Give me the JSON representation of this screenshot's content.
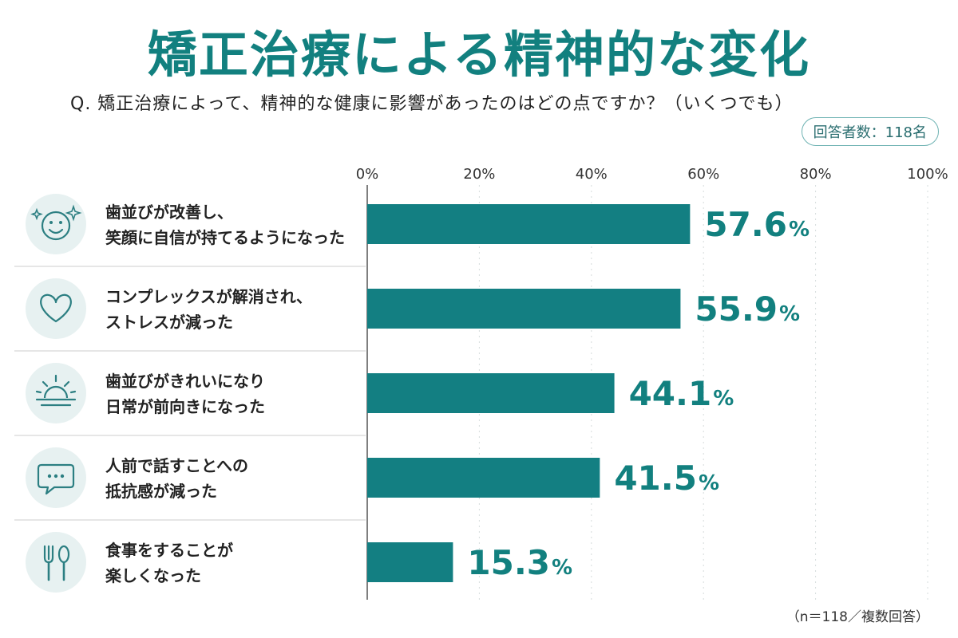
{
  "title": "矯正治療による精神的な変化",
  "question": "Q. 矯正治療によって、精神的な健康に影響があったのはどの点ですか？（いくつでも）",
  "respondents_badge": "回答者数：118名",
  "footnote": "（n＝118／複数回答）",
  "colors": {
    "bar": "#137f82",
    "accent": "#12807f",
    "icon_bg": "#e7f1f1",
    "icon_stroke": "#2c7f82"
  },
  "chart_data": {
    "type": "bar",
    "orientation": "horizontal",
    "title": "矯正治療による精神的な変化",
    "categories": [
      [
        "歯並びが改善し、",
        "笑顔に自信が持てるようになった"
      ],
      [
        "コンプレックスが解消され、",
        "ストレスが減った"
      ],
      [
        "歯並びがきれいになり",
        "日常が前向きになった"
      ],
      [
        "人前で話すことへの",
        "抵抗感が減った"
      ],
      [
        "食事をすることが",
        "楽しくなった"
      ]
    ],
    "values": [
      57.6,
      55.9,
      44.1,
      41.5,
      15.3
    ],
    "value_labels": [
      "57.6",
      "55.9",
      "44.1",
      "41.5",
      "15.3"
    ],
    "unit": "%",
    "icons": [
      "smile-sparkle-icon",
      "heart-icon",
      "sunrise-icon",
      "chat-bubble-icon",
      "fork-spoon-icon"
    ],
    "xlim": [
      0,
      100
    ],
    "ticks": [
      "0%",
      "20%",
      "40%",
      "60%",
      "80%",
      "100%"
    ],
    "tick_values": [
      0,
      20,
      40,
      60,
      80,
      100
    ],
    "grid": true
  }
}
